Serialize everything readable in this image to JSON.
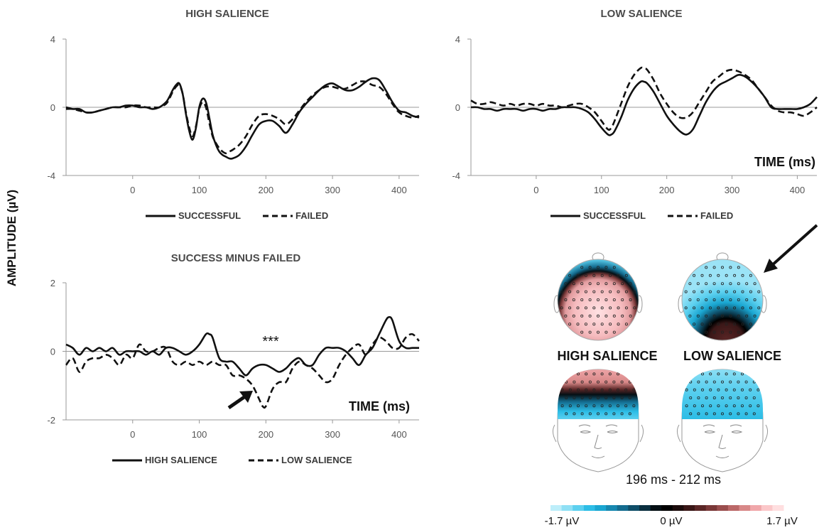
{
  "figure": {
    "ylabel": "AMPLITUDE (µV)",
    "topomap_title_high": "HIGH SALIENCE",
    "topomap_title_low": "LOW SALIENCE",
    "time_window": "196 ms - 212 ms",
    "colorbar": {
      "min_label": "-1.7 µV",
      "mid_label": "0 µV",
      "max_label": "1.7 µV",
      "colors": [
        "#bdeefa",
        "#8fe0f5",
        "#5cd0ef",
        "#2dbde6",
        "#1aa6d1",
        "#1788b0",
        "#146c8f",
        "#0f4e68",
        "#0a2f3f",
        "#050f14",
        "#000000",
        "#1c0c0c",
        "#3a1717",
        "#5a2626",
        "#7a3838",
        "#9a4e4e",
        "#bb6868",
        "#d88888",
        "#f0a7aa",
        "#fbc7c9",
        "#ffdfe0"
      ]
    },
    "significance_marker": "***"
  },
  "chart_data": [
    {
      "id": "high",
      "type": "line",
      "title": "HIGH SALIENCE",
      "xlabel": "",
      "xlim": [
        -100,
        430
      ],
      "ylim": [
        -4,
        4
      ],
      "xticks": [
        0,
        100,
        200,
        300,
        400
      ],
      "yticks": [
        -4,
        0,
        4
      ],
      "series": [
        {
          "name": "SUCCESSFUL",
          "style": "solid",
          "x": [
            -100,
            -90,
            -80,
            -70,
            -60,
            -50,
            -40,
            -30,
            -20,
            -10,
            0,
            10,
            20,
            30,
            40,
            50,
            55,
            60,
            65,
            70,
            75,
            80,
            85,
            90,
            95,
            100,
            105,
            110,
            115,
            120,
            125,
            130,
            135,
            140,
            145,
            150,
            160,
            170,
            180,
            190,
            200,
            210,
            220,
            230,
            240,
            250,
            260,
            270,
            280,
            290,
            300,
            310,
            320,
            330,
            340,
            350,
            360,
            370,
            380,
            390,
            400,
            410,
            420,
            430
          ],
          "y": [
            0,
            -0.1,
            -0.1,
            -0.3,
            -0.3,
            -0.2,
            -0.1,
            0,
            0,
            0.1,
            0.1,
            0,
            0,
            -0.1,
            0,
            0.3,
            0.6,
            1.0,
            1.3,
            1.4,
            0.8,
            -0.4,
            -1.4,
            -1.9,
            -1.2,
            0,
            0.5,
            0.3,
            -0.6,
            -1.6,
            -2.2,
            -2.6,
            -2.8,
            -2.9,
            -3.0,
            -3.0,
            -2.8,
            -2.3,
            -1.6,
            -1.0,
            -0.8,
            -0.8,
            -1.1,
            -1.5,
            -1.0,
            -0.3,
            0.2,
            0.6,
            1.0,
            1.3,
            1.4,
            1.2,
            1.0,
            1.0,
            1.2,
            1.5,
            1.7,
            1.6,
            1.0,
            0.3,
            -0.2,
            -0.3,
            -0.5,
            -0.6
          ]
        },
        {
          "name": "FAILED",
          "style": "dashed",
          "x": [
            -100,
            -90,
            -80,
            -70,
            -60,
            -50,
            -40,
            -30,
            -20,
            -10,
            0,
            10,
            20,
            30,
            40,
            50,
            55,
            60,
            65,
            70,
            75,
            80,
            85,
            90,
            95,
            100,
            105,
            110,
            115,
            120,
            125,
            130,
            135,
            140,
            145,
            150,
            160,
            170,
            180,
            190,
            200,
            210,
            220,
            230,
            240,
            250,
            260,
            270,
            280,
            290,
            300,
            310,
            320,
            330,
            340,
            350,
            360,
            370,
            380,
            390,
            400,
            410,
            420,
            430
          ],
          "y": [
            -0.1,
            -0.1,
            -0.2,
            -0.3,
            -0.3,
            -0.2,
            -0.1,
            0,
            0,
            0,
            0.1,
            0.1,
            0,
            0,
            0,
            0.2,
            0.5,
            0.9,
            1.2,
            1.3,
            0.8,
            -0.3,
            -1.2,
            -1.7,
            -1.1,
            -0.1,
            0.3,
            0,
            -0.9,
            -1.7,
            -2.1,
            -2.4,
            -2.6,
            -2.7,
            -2.6,
            -2.5,
            -2.2,
            -1.7,
            -1.0,
            -0.5,
            -0.4,
            -0.5,
            -0.7,
            -1.0,
            -0.7,
            -0.2,
            0.3,
            0.7,
            1.0,
            1.2,
            1.2,
            1.1,
            1.1,
            1.3,
            1.5,
            1.5,
            1.3,
            1.2,
            0.8,
            0.2,
            -0.3,
            -0.5,
            -0.6,
            -0.5
          ]
        }
      ]
    },
    {
      "id": "low",
      "type": "line",
      "title": "LOW SALIENCE",
      "xlabel": "TIME (ms)",
      "xlim": [
        -100,
        430
      ],
      "ylim": [
        -4,
        4
      ],
      "xticks": [
        0,
        100,
        200,
        300,
        400
      ],
      "yticks": [
        -4,
        0,
        4
      ],
      "series": [
        {
          "name": "SUCCESSFUL",
          "style": "solid",
          "x": [
            -100,
            -90,
            -80,
            -70,
            -60,
            -50,
            -40,
            -30,
            -20,
            -10,
            0,
            10,
            20,
            30,
            40,
            50,
            60,
            70,
            80,
            90,
            100,
            110,
            115,
            120,
            130,
            140,
            150,
            160,
            165,
            170,
            180,
            190,
            200,
            210,
            220,
            230,
            240,
            250,
            260,
            270,
            280,
            290,
            300,
            310,
            320,
            330,
            340,
            350,
            360,
            370,
            380,
            390,
            400,
            410,
            420,
            430
          ],
          "y": [
            0,
            0,
            -0.1,
            -0.1,
            -0.2,
            -0.1,
            -0.1,
            -0.1,
            -0.2,
            -0.1,
            -0.1,
            -0.2,
            -0.1,
            -0.1,
            0,
            0,
            0,
            -0.1,
            -0.3,
            -0.7,
            -1.2,
            -1.6,
            -1.6,
            -1.4,
            -0.6,
            0.4,
            1.1,
            1.5,
            1.5,
            1.4,
            0.9,
            0.2,
            -0.5,
            -1.0,
            -1.4,
            -1.6,
            -1.3,
            -0.5,
            0.3,
            0.9,
            1.3,
            1.5,
            1.7,
            1.9,
            1.8,
            1.5,
            1.1,
            0.6,
            0,
            -0.1,
            -0.1,
            -0.1,
            -0.1,
            0,
            0.2,
            0.6
          ]
        },
        {
          "name": "FAILED",
          "style": "dashed",
          "x": [
            -100,
            -90,
            -80,
            -70,
            -60,
            -50,
            -40,
            -30,
            -20,
            -10,
            0,
            10,
            20,
            30,
            40,
            50,
            60,
            70,
            80,
            90,
            100,
            110,
            115,
            120,
            130,
            140,
            150,
            160,
            165,
            170,
            180,
            190,
            200,
            210,
            220,
            230,
            240,
            250,
            260,
            270,
            280,
            290,
            300,
            310,
            320,
            330,
            340,
            350,
            360,
            370,
            380,
            390,
            400,
            410,
            420,
            430
          ],
          "y": [
            0.4,
            0.2,
            0.2,
            0.3,
            0.2,
            0.1,
            0.2,
            0.1,
            0.2,
            0.2,
            0.1,
            0.2,
            0.1,
            0.1,
            0,
            0.1,
            0.2,
            0.2,
            0,
            -0.3,
            -0.8,
            -1.3,
            -1.2,
            -0.8,
            0.2,
            1.2,
            1.9,
            2.3,
            2.3,
            2.2,
            1.6,
            0.8,
            0.2,
            -0.3,
            -0.6,
            -0.6,
            -0.3,
            0.3,
            0.9,
            1.5,
            1.8,
            2.1,
            2.2,
            2.1,
            1.9,
            1.6,
            1.1,
            0.6,
            0.1,
            -0.2,
            -0.3,
            -0.3,
            -0.4,
            -0.5,
            -0.3,
            0
          ]
        }
      ]
    },
    {
      "id": "diff",
      "type": "line",
      "title": "SUCCESS MINUS FAILED",
      "xlabel": "TIME (ms)",
      "xlim": [
        -100,
        430
      ],
      "ylim": [
        -2,
        2
      ],
      "xticks": [
        0,
        100,
        200,
        300,
        400
      ],
      "yticks": [
        -2,
        0,
        2
      ],
      "series": [
        {
          "name": "HIGH SALIENCE",
          "style": "solid",
          "x": [
            -100,
            -90,
            -80,
            -70,
            -60,
            -50,
            -40,
            -30,
            -20,
            -10,
            0,
            10,
            20,
            30,
            40,
            50,
            60,
            70,
            80,
            90,
            100,
            110,
            115,
            120,
            130,
            140,
            150,
            160,
            170,
            180,
            190,
            200,
            210,
            220,
            230,
            240,
            250,
            260,
            270,
            280,
            290,
            300,
            310,
            320,
            330,
            340,
            350,
            360,
            370,
            380,
            385,
            390,
            400,
            410,
            420,
            430
          ],
          "y": [
            0.2,
            0.1,
            -0.1,
            0.1,
            0,
            0.1,
            0,
            0.1,
            -0.1,
            0,
            0,
            0,
            -0.1,
            0,
            -0.1,
            0.1,
            0.1,
            0,
            -0.1,
            0,
            0.2,
            0.5,
            0.5,
            0.4,
            -0.2,
            -0.3,
            -0.3,
            -0.5,
            -0.7,
            -0.5,
            -0.4,
            -0.4,
            -0.5,
            -0.6,
            -0.5,
            -0.3,
            -0.2,
            -0.4,
            -0.4,
            -0.1,
            0.1,
            0.1,
            0.1,
            0,
            -0.2,
            -0.4,
            -0.1,
            0.1,
            0.5,
            0.9,
            1.0,
            0.9,
            0.3,
            0.1,
            0.1,
            0.1
          ]
        },
        {
          "name": "LOW SALIENCE",
          "style": "dashed",
          "x": [
            -100,
            -90,
            -80,
            -70,
            -60,
            -50,
            -40,
            -30,
            -20,
            -10,
            0,
            10,
            20,
            30,
            40,
            50,
            60,
            70,
            80,
            90,
            100,
            110,
            120,
            130,
            140,
            150,
            160,
            170,
            180,
            190,
            195,
            200,
            210,
            220,
            230,
            240,
            250,
            260,
            270,
            280,
            290,
            300,
            310,
            320,
            330,
            340,
            350,
            360,
            370,
            380,
            390,
            400,
            410,
            420,
            430
          ],
          "y": [
            -0.4,
            -0.2,
            -0.6,
            -0.3,
            -0.2,
            -0.2,
            -0.1,
            -0.2,
            -0.4,
            -0.1,
            -0.2,
            0.2,
            0,
            0,
            0.1,
            0.1,
            -0.3,
            -0.4,
            -0.3,
            -0.4,
            -0.3,
            -0.4,
            -0.3,
            -0.4,
            -0.4,
            -0.7,
            -0.7,
            -0.8,
            -1.0,
            -1.4,
            -1.6,
            -1.6,
            -1.1,
            -0.9,
            -0.9,
            -0.5,
            -0.3,
            -0.4,
            -0.5,
            -0.7,
            -0.9,
            -0.8,
            -0.4,
            -0.1,
            0.1,
            0.2,
            -0.1,
            0.2,
            0.4,
            0.3,
            0.1,
            0.1,
            0.4,
            0.5,
            0.3
          ]
        }
      ]
    }
  ]
}
